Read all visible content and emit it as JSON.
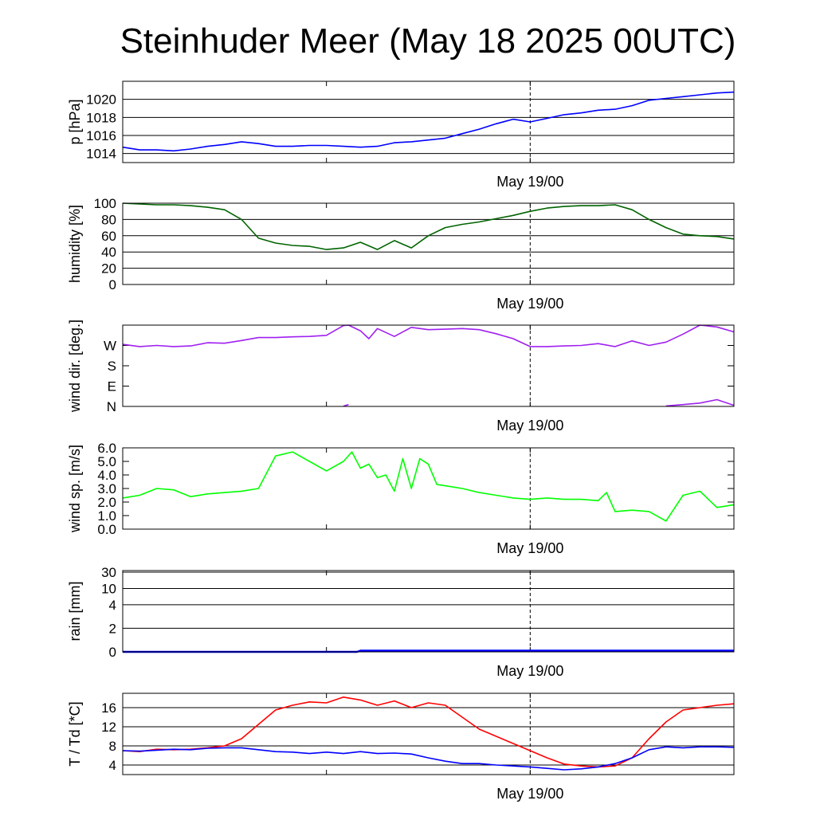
{
  "title": "Steinhuder Meer (May 18 2025 00UTC)",
  "xtick_label": "May 19/00",
  "chart_data": [
    {
      "type": "line",
      "name": "pressure",
      "ylabel": "p [hPa]",
      "ylim": [
        1013,
        1022
      ],
      "yticks": [
        1014,
        1016,
        1018,
        1020
      ],
      "ytick_labels": [
        "1014",
        "1016",
        "1018",
        "1020"
      ],
      "grid": true,
      "colors": [
        "#0000ff"
      ],
      "x": [
        0,
        1,
        2,
        3,
        4,
        5,
        6,
        7,
        8,
        9,
        10,
        11,
        12,
        13,
        14,
        15,
        16,
        17,
        18,
        19,
        20,
        21,
        22,
        23,
        24,
        25,
        26,
        27,
        28,
        29,
        30,
        31,
        32,
        33,
        34,
        35,
        36
      ],
      "series": [
        {
          "values": [
            1014.7,
            1014.4,
            1014.4,
            1014.3,
            1014.5,
            1014.8,
            1015.0,
            1015.3,
            1015.1,
            1014.8,
            1014.8,
            1014.9,
            1014.9,
            1014.8,
            1014.7,
            1014.8,
            1015.2,
            1015.3,
            1015.5,
            1015.7,
            1016.2,
            1016.7,
            1017.3,
            1017.8,
            1017.5,
            1017.9,
            1018.3,
            1018.5,
            1018.8,
            1018.9,
            1019.3,
            1019.9,
            1020.1,
            1020.3,
            1020.5,
            1020.7,
            1020.8
          ]
        }
      ]
    },
    {
      "type": "line",
      "name": "humidity",
      "ylabel": "humidity [%]",
      "ylim": [
        0,
        100
      ],
      "yticks": [
        0,
        20,
        40,
        60,
        80,
        100
      ],
      "ytick_labels": [
        "0",
        "20",
        "40",
        "60",
        "80",
        "100"
      ],
      "grid": true,
      "colors": [
        "#006400"
      ],
      "x": [
        0,
        1,
        2,
        3,
        4,
        5,
        6,
        7,
        8,
        9,
        10,
        11,
        12,
        13,
        14,
        15,
        16,
        17,
        18,
        19,
        20,
        21,
        22,
        23,
        24,
        25,
        26,
        27,
        28,
        29,
        30,
        31,
        32,
        33,
        34,
        35,
        36
      ],
      "series": [
        {
          "values": [
            100,
            99,
            98,
            98,
            97,
            95,
            92,
            80,
            57,
            51,
            48,
            47,
            43,
            45,
            52,
            43,
            54,
            45,
            60,
            70,
            74,
            77,
            81,
            85,
            90,
            94,
            96,
            97,
            97,
            98,
            92,
            80,
            70,
            62,
            60,
            59,
            56
          ]
        }
      ]
    },
    {
      "type": "line",
      "name": "wind direction",
      "ylabel": "wind dir. [deg.]",
      "ylim": [
        0,
        360
      ],
      "yticks": [
        0,
        90,
        180,
        270
      ],
      "ytick_labels": [
        "N",
        "E",
        "S",
        "W"
      ],
      "grid": false,
      "colors": [
        "#a020f0"
      ],
      "x": [
        0,
        1,
        2,
        3,
        4,
        5,
        6,
        7,
        8,
        9,
        10,
        11,
        12,
        13,
        13.3,
        14,
        14.5,
        15,
        16,
        17,
        18,
        19,
        20,
        21,
        22,
        23,
        24,
        25,
        26,
        27,
        28,
        29,
        30,
        31,
        32,
        33,
        34,
        35,
        36
      ],
      "series": [
        {
          "values": [
            275,
            265,
            270,
            265,
            268,
            282,
            280,
            292,
            305,
            305,
            308,
            310,
            315,
            358,
            360,
            335,
            300,
            345,
            310,
            350,
            340,
            342,
            345,
            340,
            322,
            300,
            265,
            265,
            268,
            270,
            278,
            265,
            290,
            270,
            285,
            320,
            360,
            352,
            330
          ]
        },
        {
          "values": [
            null,
            null,
            null,
            null,
            null,
            null,
            null,
            null,
            null,
            null,
            null,
            null,
            null,
            1,
            8,
            null,
            null,
            null,
            null,
            null,
            null,
            null,
            null,
            null,
            null,
            null,
            null,
            null,
            null,
            null,
            null,
            null,
            null,
            null,
            2,
            8,
            15,
            30,
            5
          ]
        }
      ]
    },
    {
      "type": "line",
      "name": "wind speed",
      "ylabel": "wind sp. [m/s]",
      "ylim": [
        0,
        6.0
      ],
      "yticks": [
        0,
        1,
        2,
        3,
        4,
        5,
        6
      ],
      "ytick_labels": [
        "0.0",
        "1.0",
        "2.0",
        "3.0",
        "4.0",
        "5.0",
        "6.0"
      ],
      "grid": false,
      "colors": [
        "#00ff00"
      ],
      "x": [
        0,
        1,
        2,
        3,
        4,
        5,
        6,
        7,
        8,
        9,
        10,
        11,
        12,
        13,
        13.5,
        14,
        14.5,
        15,
        15.5,
        16,
        16.5,
        17,
        17.5,
        18,
        18.5,
        19,
        20,
        21,
        22,
        23,
        24,
        25,
        26,
        27,
        28,
        28.5,
        29,
        30,
        31,
        32,
        33,
        34,
        35,
        36
      ],
      "series": [
        {
          "values": [
            2.3,
            2.5,
            3.0,
            2.9,
            2.4,
            2.6,
            2.7,
            2.8,
            3.0,
            5.4,
            5.7,
            5.0,
            4.3,
            5.0,
            5.7,
            4.5,
            4.8,
            3.8,
            4.0,
            2.8,
            5.2,
            3.0,
            5.2,
            4.8,
            3.3,
            3.2,
            3.0,
            2.7,
            2.5,
            2.3,
            2.2,
            2.3,
            2.2,
            2.2,
            2.1,
            2.7,
            1.3,
            1.4,
            1.3,
            0.6,
            2.5,
            2.8,
            1.6,
            1.8
          ]
        }
      ]
    },
    {
      "type": "line",
      "name": "rain",
      "ylabel": "rain [mm]",
      "ylim": [
        0,
        30
      ],
      "yticks": [
        0,
        2,
        4,
        10,
        30
      ],
      "ytick_labels": [
        "0",
        "2",
        "4",
        "10",
        "30"
      ],
      "grid": true,
      "colors": [
        "#0000ff"
      ],
      "x": [
        0,
        13.8,
        14.0,
        36
      ],
      "series": [
        {
          "values": [
            0,
            0,
            0.1,
            0.1
          ]
        }
      ]
    },
    {
      "type": "line",
      "name": "temperature",
      "ylabel": "T / Td [*C]",
      "ylim": [
        2,
        19
      ],
      "yticks": [
        4,
        8,
        12,
        16
      ],
      "ytick_labels": [
        "4",
        "8",
        "12",
        "16"
      ],
      "grid": true,
      "colors": [
        "#ff0000",
        "#0000ff"
      ],
      "x": [
        0,
        1,
        2,
        3,
        4,
        5,
        6,
        7,
        8,
        9,
        10,
        11,
        12,
        13,
        14,
        15,
        16,
        17,
        18,
        19,
        20,
        21,
        22,
        23,
        24,
        25,
        26,
        27,
        28,
        29,
        30,
        31,
        32,
        33,
        34,
        35,
        36
      ],
      "series": [
        {
          "values": [
            7.0,
            6.8,
            7.3,
            7.2,
            7.3,
            7.6,
            8.0,
            9.5,
            12.5,
            15.5,
            16.5,
            17.2,
            17.0,
            18.2,
            17.6,
            16.5,
            17.4,
            16.0,
            17.0,
            16.5,
            14.0,
            11.5,
            10.0,
            8.5,
            7.0,
            5.5,
            4.2,
            3.8,
            3.6,
            3.8,
            5.5,
            9.5,
            13.0,
            15.5,
            16.0,
            16.5,
            16.8
          ]
        },
        {
          "values": [
            7.0,
            6.9,
            7.1,
            7.3,
            7.2,
            7.5,
            7.6,
            7.6,
            7.2,
            6.8,
            6.7,
            6.4,
            6.7,
            6.4,
            6.8,
            6.4,
            6.5,
            6.3,
            5.5,
            4.8,
            4.3,
            4.3,
            4.0,
            3.8,
            3.6,
            3.3,
            3.0,
            3.2,
            3.6,
            4.3,
            5.5,
            7.2,
            7.8,
            7.6,
            7.8,
            7.8,
            7.7
          ]
        }
      ]
    }
  ]
}
